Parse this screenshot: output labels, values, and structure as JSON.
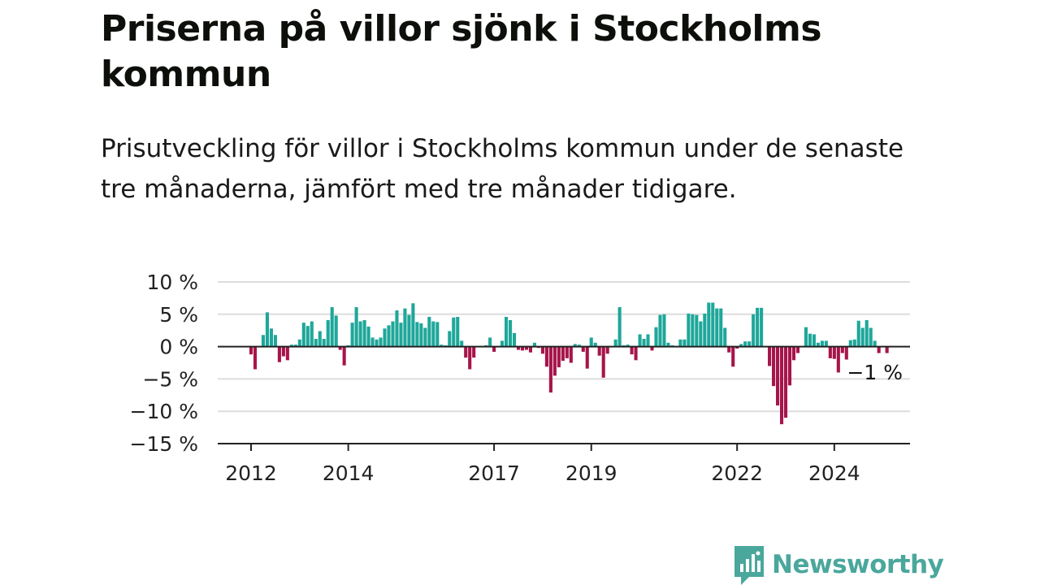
{
  "header": {
    "title": "Priserna på villor sjönk i Stockholms kommun",
    "subtitle": "Prisutveckling för villor i Stockholms kommun under de senaste tre månaderna, jämfört med tre månader tidigare."
  },
  "brand": {
    "name": "Newsworthy"
  },
  "colors": {
    "positive": "#1ea79a",
    "negative": "#a6154a",
    "grid": "#dddddd",
    "axis": "#222222",
    "brand": "#4aa79c"
  },
  "chart_data": {
    "type": "bar",
    "title": "Priserna på villor sjönk i Stockholms kommun",
    "subtitle": "Prisutveckling för villor i Stockholms kommun under de senaste tre månaderna, jämfört med tre månader tidigare.",
    "xlabel": "",
    "ylabel": "",
    "ylim": [
      -15,
      10
    ],
    "yticks": [
      10,
      5,
      0,
      -5,
      -10,
      -15
    ],
    "ytick_labels": [
      "10 %",
      "5 %",
      "0 %",
      "−5 %",
      "−10 %",
      "−15 %"
    ],
    "xticks": [
      "2012",
      "2014",
      "2017",
      "2019",
      "2022",
      "2024"
    ],
    "x_start": "2012-01",
    "x_tick_positions": [
      "2012-01",
      "2014-01",
      "2017-01",
      "2019-01",
      "2022-01",
      "2024-01"
    ],
    "grid": true,
    "annotation": {
      "text": "−1 %",
      "value": -1
    },
    "values": [
      -1.2,
      -3.5,
      0,
      1.8,
      5.3,
      2.8,
      1.8,
      -2.4,
      -1.5,
      -2.1,
      0.3,
      0.3,
      1.1,
      3.7,
      3.2,
      3.9,
      1.2,
      2.4,
      1.2,
      4.1,
      6.1,
      4.8,
      -0.5,
      -2.9,
      0.2,
      3.7,
      6.1,
      3.9,
      4.1,
      3.1,
      1.4,
      1.1,
      1.4,
      2.8,
      3.3,
      3.9,
      5.6,
      3.7,
      5.9,
      4.9,
      6.7,
      3.8,
      3.6,
      2.9,
      4.6,
      3.9,
      3.8,
      0.3,
      0.2,
      2.4,
      4.5,
      4.6,
      0.9,
      -1.7,
      -3.5,
      -1.7,
      0.1,
      0.1,
      0.2,
      1.4,
      -0.8,
      0.1,
      0.9,
      4.6,
      4.1,
      2.1,
      -0.5,
      -0.6,
      -0.5,
      -0.9,
      0.6,
      -0.2,
      -1.1,
      -3.1,
      -7.1,
      -4.5,
      -3.2,
      -2.2,
      -1.8,
      -2.5,
      0.4,
      0.3,
      -0.8,
      -3.4,
      1.4,
      0.6,
      -1.4,
      -4.8,
      -1.1,
      0.1,
      1.1,
      6.1,
      0.2,
      0.3,
      -1.2,
      -2.1,
      1.9,
      1.2,
      1.9,
      -0.6,
      3.0,
      4.9,
      5.0,
      0.6,
      0.2,
      0.1,
      1.1,
      1.1,
      5.1,
      5.0,
      4.9,
      3.9,
      5.1,
      6.8,
      6.8,
      5.9,
      5.9,
      2.9,
      -0.9,
      -3.1,
      -0.3,
      0.4,
      0.8,
      0.8,
      5.0,
      6.0,
      6.0,
      -0.1,
      -3.0,
      -6.1,
      -9.1,
      -12.0,
      -11.0,
      -6.0,
      -2.1,
      -1.0,
      0.1,
      3.0,
      2.0,
      1.9,
      0.6,
      0.9,
      0.9,
      -1.8,
      -1.9,
      -4.0,
      -1.0,
      -2.0,
      1.0,
      1.1,
      4.0,
      2.9,
      4.1,
      2.9,
      0.9,
      -1.0,
      0.1,
      -1.0
    ]
  }
}
